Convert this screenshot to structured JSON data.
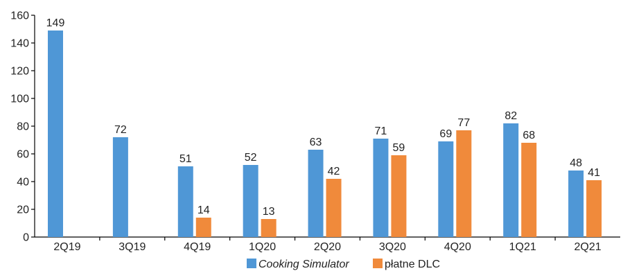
{
  "chart_data": {
    "type": "bar",
    "categories": [
      "2Q19",
      "3Q19",
      "4Q19",
      "1Q20",
      "2Q20",
      "3Q20",
      "4Q20",
      "1Q21",
      "2Q21"
    ],
    "series": [
      {
        "name": "Cooking Simulator",
        "color": "#4f97d6",
        "values": [
          149,
          72,
          51,
          52,
          63,
          71,
          69,
          82,
          48
        ]
      },
      {
        "name": "płatne DLC",
        "color": "#f08a3b",
        "values": [
          null,
          null,
          14,
          13,
          42,
          59,
          77,
          68,
          41
        ]
      }
    ],
    "ylim": [
      0,
      160
    ],
    "yticks": [
      0,
      20,
      40,
      60,
      80,
      100,
      120,
      140,
      160
    ],
    "grid": false,
    "legend": "bottom",
    "title": "",
    "xlabel": "",
    "ylabel": ""
  }
}
